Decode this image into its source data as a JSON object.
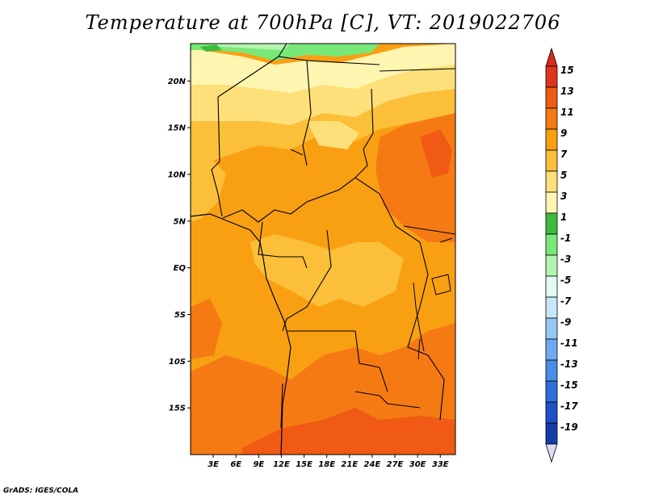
{
  "title": "Temperature at 700hPa [C], VT: 2019022706",
  "credit": "GrADS: IGES/COLA",
  "map": {
    "lon_range": [
      0,
      35
    ],
    "lat_range": [
      -20,
      24
    ],
    "lon_ticks": [
      {
        "value": 3,
        "label": "3E"
      },
      {
        "value": 6,
        "label": "6E"
      },
      {
        "value": 9,
        "label": "9E"
      },
      {
        "value": 12,
        "label": "12E"
      },
      {
        "value": 15,
        "label": "15E"
      },
      {
        "value": 18,
        "label": "18E"
      },
      {
        "value": 21,
        "label": "21E"
      },
      {
        "value": 24,
        "label": "24E"
      },
      {
        "value": 27,
        "label": "27E"
      },
      {
        "value": 30,
        "label": "30E"
      },
      {
        "value": 33,
        "label": "33E"
      }
    ],
    "lat_ticks": [
      {
        "value": 20,
        "label": "20N"
      },
      {
        "value": 15,
        "label": "15N"
      },
      {
        "value": 10,
        "label": "10N"
      },
      {
        "value": 5,
        "label": "5N"
      },
      {
        "value": 0,
        "label": "EQ"
      },
      {
        "value": -5,
        "label": "5S"
      },
      {
        "value": -10,
        "label": "10S"
      },
      {
        "value": -15,
        "label": "15S"
      }
    ]
  },
  "colorbar": {
    "levels": [
      {
        "label": "15",
        "color": "#e1341f"
      },
      {
        "label": "13",
        "color": "#f05a14"
      },
      {
        "label": "11",
        "color": "#f57a14"
      },
      {
        "label": "9",
        "color": "#f9a012"
      },
      {
        "label": "7",
        "color": "#fbbf3a"
      },
      {
        "label": "5",
        "color": "#fde07a"
      },
      {
        "label": "3",
        "color": "#fef5b0"
      },
      {
        "label": "1",
        "color": "#3cbc3c"
      },
      {
        "label": "-1",
        "color": "#78e878"
      },
      {
        "label": "-3",
        "color": "#b4f4b0"
      },
      {
        "label": "-5",
        "color": "#e2faf2"
      },
      {
        "label": "-7",
        "color": "#c8e6fa"
      },
      {
        "label": "-9",
        "color": "#96c8f5"
      },
      {
        "label": "-11",
        "color": "#6eaaf0"
      },
      {
        "label": "-13",
        "color": "#4a8ce6"
      },
      {
        "label": "-15",
        "color": "#2f6edc"
      },
      {
        "label": "-17",
        "color": "#1e50c8"
      },
      {
        "label": "-19",
        "color": "#143caa"
      }
    ],
    "top_arrow_color": "#dc2a1a",
    "bottom_arrow_color": "#0a1e78",
    "below_min_color": "#dcdcf5"
  }
}
